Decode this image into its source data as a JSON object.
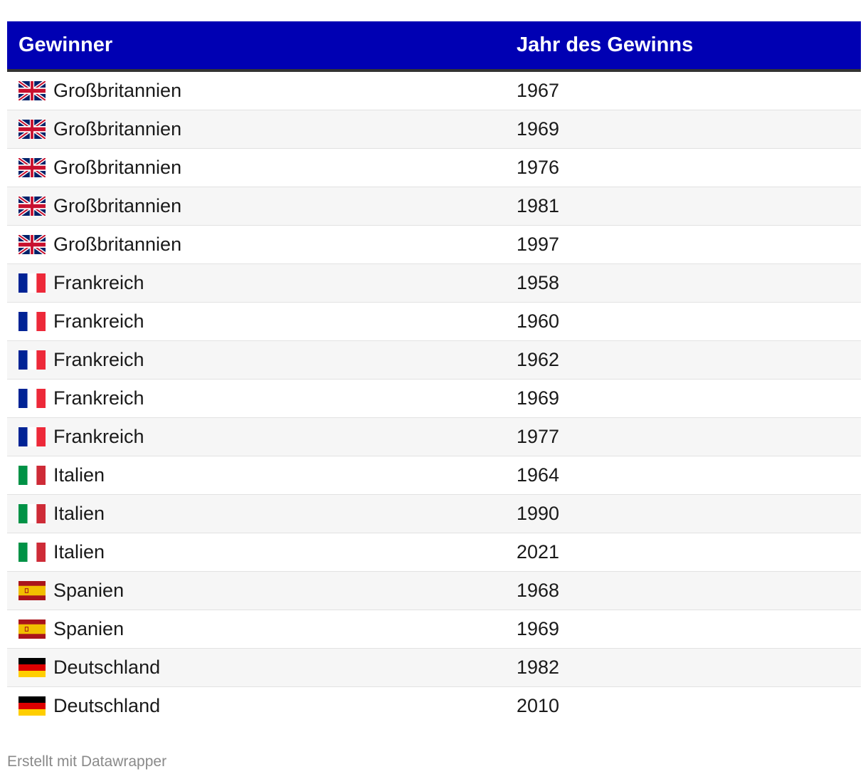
{
  "chart_data": {
    "type": "table",
    "columns": [
      "Gewinner",
      "Jahr des Gewinns"
    ],
    "rows": [
      {
        "country": "Großbritannien",
        "flag": "uk-flag-icon",
        "year": "1967"
      },
      {
        "country": "Großbritannien",
        "flag": "uk-flag-icon",
        "year": "1969"
      },
      {
        "country": "Großbritannien",
        "flag": "uk-flag-icon",
        "year": "1976"
      },
      {
        "country": "Großbritannien",
        "flag": "uk-flag-icon",
        "year": "1981"
      },
      {
        "country": "Großbritannien",
        "flag": "uk-flag-icon",
        "year": "1997"
      },
      {
        "country": "Frankreich",
        "flag": "france-flag-icon",
        "year": "1958"
      },
      {
        "country": "Frankreich",
        "flag": "france-flag-icon",
        "year": "1960"
      },
      {
        "country": "Frankreich",
        "flag": "france-flag-icon",
        "year": "1962"
      },
      {
        "country": "Frankreich",
        "flag": "france-flag-icon",
        "year": "1969"
      },
      {
        "country": "Frankreich",
        "flag": "france-flag-icon",
        "year": "1977"
      },
      {
        "country": "Italien",
        "flag": "italy-flag-icon",
        "year": "1964"
      },
      {
        "country": "Italien",
        "flag": "italy-flag-icon",
        "year": "1990"
      },
      {
        "country": "Italien",
        "flag": "italy-flag-icon",
        "year": "2021"
      },
      {
        "country": "Spanien",
        "flag": "spain-flag-icon",
        "year": "1968"
      },
      {
        "country": "Spanien",
        "flag": "spain-flag-icon",
        "year": "1969"
      },
      {
        "country": "Deutschland",
        "flag": "germany-flag-icon",
        "year": "1982"
      },
      {
        "country": "Deutschland",
        "flag": "germany-flag-icon",
        "year": "2010"
      }
    ]
  },
  "footer": {
    "credit": "Erstellt mit Datawrapper"
  },
  "colors": {
    "header_background": "#0000b3",
    "header_text": "#ffffff",
    "stripe": "#f6f6f6"
  }
}
